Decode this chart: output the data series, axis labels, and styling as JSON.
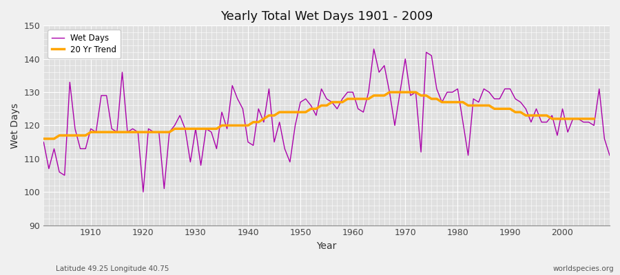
{
  "title": "Yearly Total Wet Days 1901 - 2009",
  "xlabel": "Year",
  "ylabel": "Wet Days",
  "bottom_left_label": "Latitude 49.25 Longitude 40.75",
  "bottom_right_label": "worldspecies.org",
  "line_color": "#aa00aa",
  "trend_color": "#ffa500",
  "bg_color": "#f0f0f0",
  "plot_bg_color": "#e0e0e0",
  "ylim": [
    90,
    150
  ],
  "xlim": [
    1901,
    2009
  ],
  "yticks": [
    90,
    100,
    110,
    120,
    130,
    140,
    150
  ],
  "xticks": [
    1910,
    1920,
    1930,
    1940,
    1950,
    1960,
    1970,
    1980,
    1990,
    2000
  ],
  "years": [
    1901,
    1902,
    1903,
    1904,
    1905,
    1906,
    1907,
    1908,
    1909,
    1910,
    1911,
    1912,
    1913,
    1914,
    1915,
    1916,
    1917,
    1918,
    1919,
    1920,
    1921,
    1922,
    1923,
    1924,
    1925,
    1926,
    1927,
    1928,
    1929,
    1930,
    1931,
    1932,
    1933,
    1934,
    1935,
    1936,
    1937,
    1938,
    1939,
    1940,
    1941,
    1942,
    1943,
    1944,
    1945,
    1946,
    1947,
    1948,
    1949,
    1950,
    1951,
    1952,
    1953,
    1954,
    1955,
    1956,
    1957,
    1958,
    1959,
    1960,
    1961,
    1962,
    1963,
    1964,
    1965,
    1966,
    1967,
    1968,
    1969,
    1970,
    1971,
    1972,
    1973,
    1974,
    1975,
    1976,
    1977,
    1978,
    1979,
    1980,
    1981,
    1982,
    1983,
    1984,
    1985,
    1986,
    1987,
    1988,
    1989,
    1990,
    1991,
    1992,
    1993,
    1994,
    1995,
    1996,
    1997,
    1998,
    1999,
    2000,
    2001,
    2002,
    2003,
    2004,
    2005,
    2006,
    2007,
    2008,
    2009
  ],
  "wet_days": [
    115,
    107,
    113,
    106,
    105,
    133,
    119,
    113,
    113,
    119,
    118,
    129,
    129,
    119,
    118,
    136,
    118,
    119,
    118,
    100,
    119,
    118,
    118,
    101,
    118,
    120,
    123,
    119,
    109,
    119,
    108,
    119,
    118,
    113,
    124,
    119,
    132,
    128,
    125,
    115,
    114,
    125,
    121,
    131,
    115,
    121,
    113,
    109,
    120,
    127,
    128,
    126,
    123,
    131,
    128,
    127,
    125,
    128,
    130,
    130,
    125,
    124,
    130,
    143,
    136,
    138,
    130,
    120,
    130,
    140,
    129,
    130,
    112,
    142,
    141,
    131,
    127,
    130,
    130,
    131,
    121,
    111,
    128,
    127,
    131,
    130,
    128,
    128,
    131,
    131,
    128,
    127,
    125,
    121,
    125,
    121,
    121,
    123,
    117,
    125,
    118,
    122,
    122,
    121,
    121,
    120,
    131,
    116,
    111
  ],
  "trend": [
    116,
    116,
    116,
    117,
    117,
    117,
    117,
    117,
    117,
    118,
    118,
    118,
    118,
    118,
    118,
    118,
    118,
    118,
    118,
    118,
    118,
    118,
    118,
    118,
    118,
    119,
    119,
    119,
    119,
    119,
    119,
    119,
    119,
    119,
    120,
    120,
    120,
    120,
    120,
    120,
    121,
    121,
    122,
    123,
    123,
    124,
    124,
    124,
    124,
    124,
    124,
    125,
    125,
    126,
    126,
    127,
    127,
    127,
    128,
    128,
    128,
    128,
    128,
    129,
    129,
    129,
    130,
    130,
    130,
    130,
    130,
    130,
    129,
    129,
    128,
    128,
    127,
    127,
    127,
    127,
    127,
    126,
    126,
    126,
    126,
    126,
    125,
    125,
    125,
    125,
    124,
    124,
    123,
    123,
    123,
    123,
    123,
    122,
    122,
    122,
    122,
    122,
    122,
    122,
    122,
    122,
    null,
    null,
    null
  ]
}
